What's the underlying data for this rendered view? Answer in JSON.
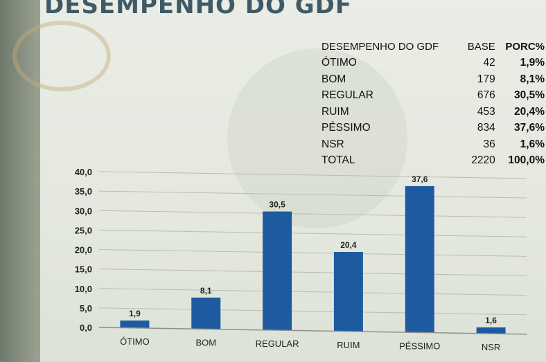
{
  "title": "DESEMPENHO DO GDF",
  "table": {
    "headers": [
      "DESEMPENHO DO GDF",
      "BASE",
      "PORC%"
    ],
    "rows": [
      {
        "label": "ÓTIMO",
        "base": "42",
        "pct": "1,9%"
      },
      {
        "label": "BOM",
        "base": "179",
        "pct": "8,1%"
      },
      {
        "label": "REGULAR",
        "base": "676",
        "pct": "30,5%"
      },
      {
        "label": "RUIM",
        "base": "453",
        "pct": "20,4%"
      },
      {
        "label": "PÉSSIMO",
        "base": "834",
        "pct": "37,6%"
      },
      {
        "label": "NSR",
        "base": "36",
        "pct": "1,6%"
      },
      {
        "label": "TOTAL",
        "base": "2220",
        "pct": "100,0%"
      }
    ]
  },
  "chart_data": {
    "type": "bar",
    "categories": [
      "ÓTIMO",
      "BOM",
      "REGULAR",
      "RUIM",
      "PÉSSIMO",
      "NSR"
    ],
    "values": [
      1.9,
      8.1,
      30.5,
      20.4,
      37.6,
      1.6
    ],
    "value_labels": [
      "1,9",
      "8,1",
      "30,5",
      "20,4",
      "37,6",
      "1,6"
    ],
    "y_ticks": [
      "0,0",
      "5,0",
      "10,0",
      "15,0",
      "20,0",
      "25,0",
      "30,0",
      "35,0",
      "40,0"
    ],
    "ylim": [
      0,
      40
    ],
    "grid": true,
    "legend": "none",
    "bar_color": "#1e5aa0"
  }
}
